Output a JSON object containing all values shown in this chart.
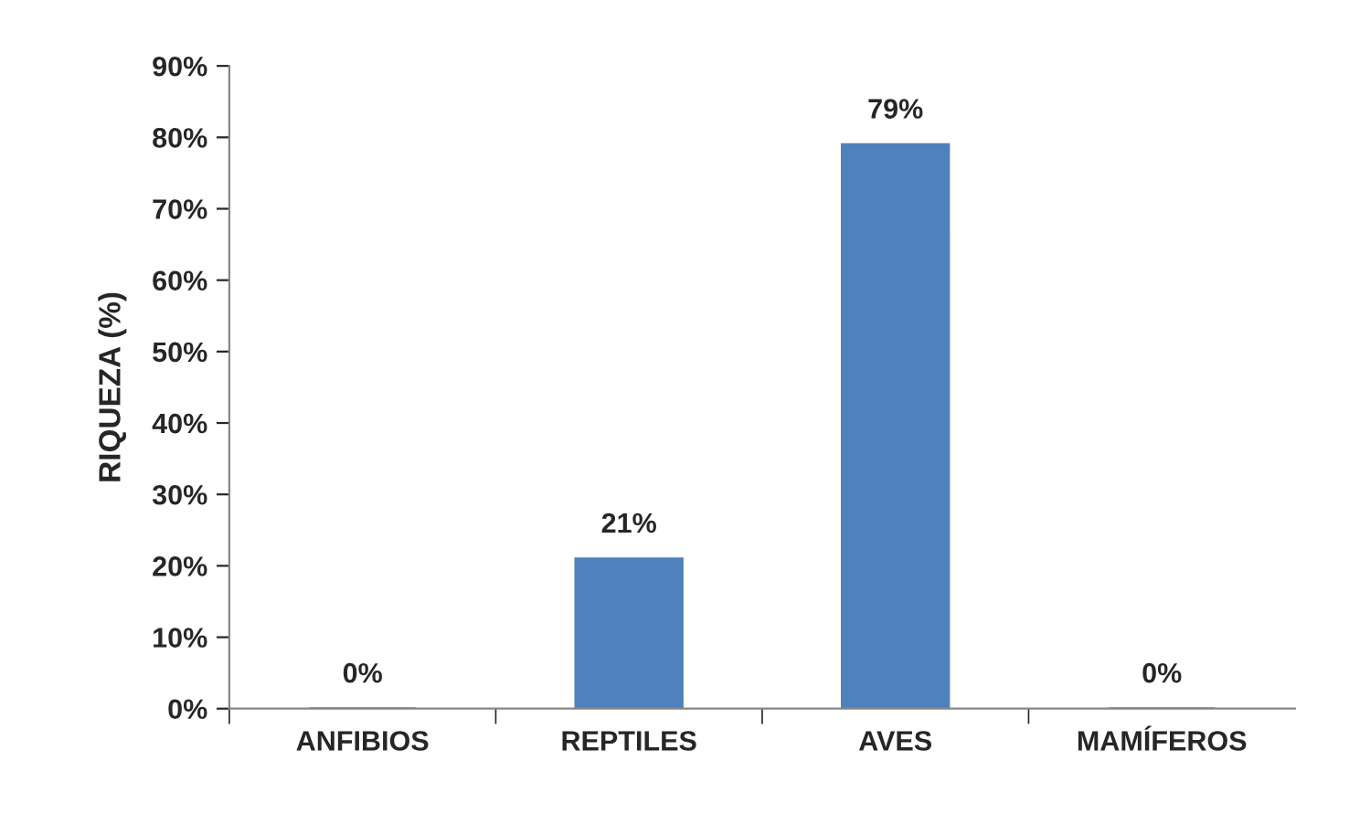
{
  "chart_data": {
    "type": "bar",
    "ylabel": "RIQUEZA (%)",
    "categories": [
      "ANFIBIOS",
      "REPTILES",
      "AVES",
      "MAMÍFEROS"
    ],
    "values": [
      0,
      21,
      79,
      0
    ],
    "value_labels": [
      "0%",
      "21%",
      "79%",
      "0%"
    ],
    "color": "#4f81bd",
    "ylim": [
      0,
      90
    ],
    "yticks": [
      {
        "value": 0,
        "label": "0%"
      },
      {
        "value": 10,
        "label": "10%"
      },
      {
        "value": 20,
        "label": "20%"
      },
      {
        "value": 30,
        "label": "30%"
      },
      {
        "value": 40,
        "label": "40%"
      },
      {
        "value": 50,
        "label": "50%"
      },
      {
        "value": 60,
        "label": "60%"
      },
      {
        "value": 70,
        "label": "70%"
      },
      {
        "value": 80,
        "label": "80%"
      },
      {
        "value": 90,
        "label": "90%"
      }
    ],
    "grid": false,
    "legend": false
  }
}
